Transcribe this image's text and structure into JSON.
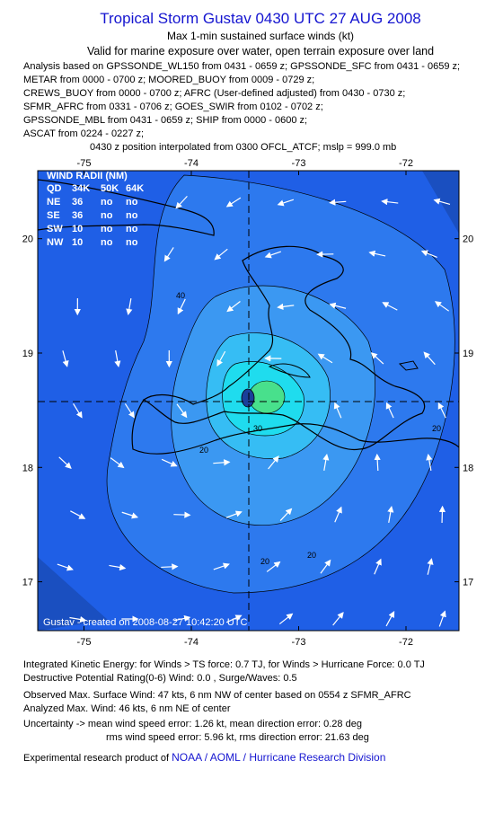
{
  "header": {
    "title": "Tropical Storm Gustav 0430 UTC 27 AUG 2008",
    "subtitle": "Max 1-min sustained surface winds (kt)",
    "valid": "Valid for marine exposure over water, open terrain exposure over land",
    "analysis_lines": [
      "Analysis based on  GPSSONDE_WL150 from 0431 - 0659 z;  GPSSONDE_SFC from 0431 - 0659 z;",
      "METAR from 0000 - 0700 z;  MOORED_BUOY from 0009 - 0729 z;",
      "CREWS_BUOY from 0000 - 0700 z;  AFRC (User-defined adjusted) from 0430 - 0730 z;",
      "SFMR_AFRC from 0331 - 0706 z;  GOES_SWIR from 0102 - 0702 z;",
      "GPSSONDE_MBL from 0431 - 0659 z;  SHIP from 0000 - 0600 z;",
      "ASCAT from 0224 - 0227 z;"
    ],
    "position_note": "0430 z position interpolated from 0300 OFCL_ATCF; mslp = 999.0 mb"
  },
  "map": {
    "lon_labels": [
      -75,
      -74,
      -73,
      -72
    ],
    "lat_labels": [
      20,
      19,
      18,
      17
    ],
    "wind_radii": {
      "title": "WIND RADII (NM)",
      "rows": [
        [
          "QD",
          "34K",
          "50K",
          "64K"
        ],
        [
          "NE",
          "36",
          "no",
          "no"
        ],
        [
          "SE",
          "36",
          "no",
          "no"
        ],
        [
          "SW",
          "10",
          "no",
          "no"
        ],
        [
          "NW",
          "10",
          "no",
          "no"
        ]
      ]
    },
    "contour_labels": [
      "40",
      "30",
      "20",
      "20",
      "20",
      "20"
    ],
    "credit": "Gustav - created on 2008-08-27 10:42:20 UTC"
  },
  "footer": {
    "ike": "Integrated Kinetic Energy:  for Winds > TS force: 0.7 TJ,  for Winds > Hurricane Force: 0.0 TJ",
    "dpr": "Destructive Potential Rating(0-6)   Wind: 0.0 , Surge/Waves: 0.5",
    "observed": "Observed Max. Surface Wind: 47 kts, 6 nm NW of center based on 0554 z SFMR_AFRC",
    "analyzed": "Analyzed Max. Wind: 46 kts, 6 nm NE of center",
    "uncertainty_1": "Uncertainty -> mean wind speed error: 1.26 kt,   mean direction error: 0.28 deg",
    "uncertainty_2": "rms wind speed error: 5.96 kt,   rms direction error: 21.63 deg",
    "credit_prefix": "Experimental research product of",
    "credit_org": "NOAA / AOML / Hurricane Research Division"
  }
}
